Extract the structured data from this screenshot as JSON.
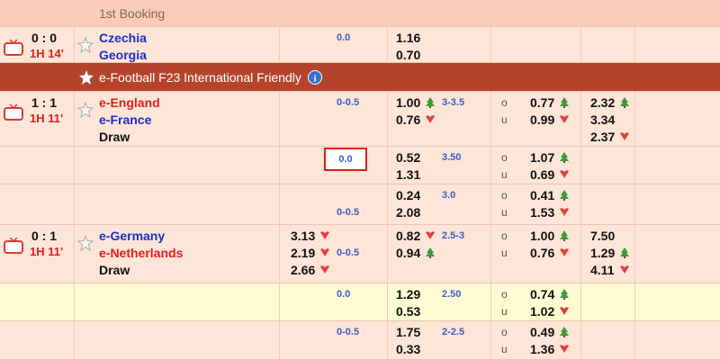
{
  "over_label": "o",
  "under_label": "u",
  "rows": [
    {
      "type": "section",
      "text": "1st Booking"
    },
    {
      "type": "match",
      "score": "0 : 0",
      "time": "1H 14'",
      "teams": [
        {
          "name": "Czechia",
          "color": "#1c2fc4"
        },
        {
          "name": "Georgia",
          "color": "#1c2fc4"
        }
      ],
      "hdp": "0.0",
      "hdp_at": 0,
      "hdp_odds": [
        {
          "value": "1.16"
        },
        {
          "value": "0.70"
        }
      ]
    },
    {
      "type": "league",
      "text": "e-Football F23 International Friendly"
    },
    {
      "type": "match",
      "score": "1 : 1",
      "time": "1H 11'",
      "teams": [
        {
          "name": "e-England",
          "color": "#e0201c"
        },
        {
          "name": "e-France",
          "color": "#1c2fc4"
        },
        {
          "name": "Draw",
          "color": "#111111"
        }
      ],
      "hdp": "0-0.5",
      "hdp_at": 0,
      "hdp_odds": [
        {
          "value": "1.00",
          "trend": "up"
        },
        {
          "value": "0.76",
          "trend": "down"
        }
      ],
      "ou": "3-3.5",
      "ou_odds": [
        {
          "value": "0.77",
          "trend": "up"
        },
        {
          "value": "0.99",
          "trend": "down"
        }
      ],
      "x12_right": [
        {
          "value": "2.32",
          "trend": "up"
        },
        {
          "value": "3.34"
        },
        {
          "value": "2.37",
          "trend": "down"
        }
      ]
    },
    {
      "type": "market",
      "selected": true,
      "hdp": "0.0",
      "hdp_at": 0,
      "hdp_odds": [
        {
          "value": "0.52"
        },
        {
          "value": "1.31"
        }
      ],
      "ou": "3.50",
      "ou_odds": [
        {
          "value": "1.07",
          "trend": "up"
        },
        {
          "value": "0.69",
          "trend": "down"
        }
      ]
    },
    {
      "type": "market",
      "hdp": "0-0.5",
      "hdp_at": 1,
      "hdp_odds": [
        {
          "value": "0.24"
        },
        {
          "value": "2.08"
        }
      ],
      "ou": "3.0",
      "ou_odds": [
        {
          "value": "0.41",
          "trend": "up"
        },
        {
          "value": "1.53",
          "trend": "down"
        }
      ]
    },
    {
      "type": "match",
      "score": "0 : 1",
      "time": "1H 11'",
      "teams": [
        {
          "name": "e-Germany",
          "color": "#1c2fc4"
        },
        {
          "name": "e-Netherlands",
          "color": "#e0201c"
        },
        {
          "name": "Draw",
          "color": "#111111"
        }
      ],
      "x12_left": [
        {
          "value": "3.13",
          "trend": "down"
        },
        {
          "value": "2.19",
          "trend": "down"
        },
        {
          "value": "2.66",
          "trend": "down"
        }
      ],
      "hdp": "0-0.5",
      "hdp_at": 1,
      "hdp_odds": [
        {
          "value": "0.82",
          "trend": "down"
        },
        {
          "value": "0.94",
          "trend": "up"
        }
      ],
      "ou": "2.5-3",
      "ou_odds": [
        {
          "value": "1.00",
          "trend": "up"
        },
        {
          "value": "0.76",
          "trend": "down"
        }
      ],
      "x12_right": [
        {
          "value": "7.50"
        },
        {
          "value": "1.29",
          "trend": "up"
        },
        {
          "value": "4.11",
          "trend": "down"
        }
      ]
    },
    {
      "type": "market",
      "highlighted": true,
      "hdp": "0.0",
      "hdp_at": 0,
      "hdp_odds": [
        {
          "value": "1.29"
        },
        {
          "value": "0.53"
        }
      ],
      "ou": "2.50",
      "ou_odds": [
        {
          "value": "0.74",
          "trend": "up"
        },
        {
          "value": "1.02",
          "trend": "down"
        }
      ]
    },
    {
      "type": "market",
      "hdp": "0-0.5",
      "hdp_at": 0,
      "hdp_odds": [
        {
          "value": "1.75"
        },
        {
          "value": "0.33"
        }
      ],
      "ou": "2-2.5",
      "ou_odds": [
        {
          "value": "0.49",
          "trend": "up"
        },
        {
          "value": "1.36",
          "trend": "down"
        }
      ]
    }
  ]
}
